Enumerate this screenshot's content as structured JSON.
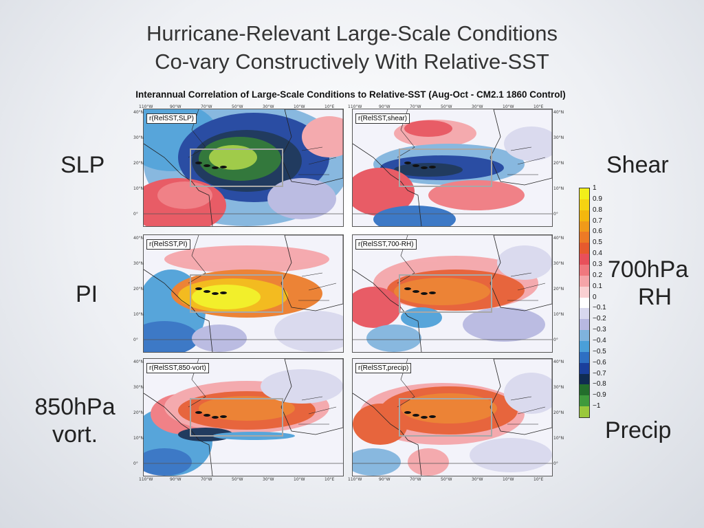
{
  "slide": {
    "title_line1": "Hurricane-Relevant Large-Scale Conditions",
    "title_line2": "Co-vary Constructively With Relative-SST"
  },
  "figure": {
    "title": "Interannual Correlation of Large-Scale Conditions to Relative-SST (Aug-Oct - CM2.1 1860 Control)",
    "lon_ticks": [
      "110°W",
      "90°W",
      "70°W",
      "50°W",
      "30°W",
      "10°W",
      "10°E"
    ],
    "lat_ticks": [
      "40°N",
      "30°N",
      "20°N",
      "10°N",
      "0°"
    ]
  },
  "side_labels": {
    "slp": "SLP",
    "pi": "PI",
    "vort_line1": "850hPa",
    "vort_line2": "vort.",
    "shear": "Shear",
    "rh_line1": "700hPa",
    "rh_line2": "RH",
    "precip": "Precip"
  },
  "panels": [
    {
      "tag": "r(RelSST,SLP)",
      "pattern": "slp"
    },
    {
      "tag": "r(RelSST,shear)",
      "pattern": "shear"
    },
    {
      "tag": "r(RelSST,PI)",
      "pattern": "pi"
    },
    {
      "tag": "r(RelSST,700-RH)",
      "pattern": "rh"
    },
    {
      "tag": "r(RelSST,850-vort)",
      "pattern": "vort"
    },
    {
      "tag": "r(RelSST,precip)",
      "pattern": "precip"
    }
  ],
  "colorbar": {
    "labels": [
      "1",
      "0.9",
      "0.8",
      "0.7",
      "0.6",
      "0.5",
      "0.4",
      "0.3",
      "0.2",
      "0.1",
      "0",
      "−0.1",
      "−0.2",
      "−0.3",
      "−0.4",
      "−0.5",
      "−0.6",
      "−0.7",
      "−0.8",
      "−0.9",
      "−1"
    ],
    "colors": [
      "#f2ef1a",
      "#f5d312",
      "#f4b70e",
      "#f09a1a",
      "#ec7a26",
      "#e65a2e",
      "#e8505a",
      "#f0787e",
      "#f5a4a8",
      "#fad0d2",
      "#ffffff",
      "#d8d8ee",
      "#b7b8e0",
      "#7fb3dd",
      "#4a9fd8",
      "#2e6fc2",
      "#1a3f9c",
      "#102c52",
      "#236e2c",
      "#3f9a3c",
      "#9ac83c"
    ]
  }
}
